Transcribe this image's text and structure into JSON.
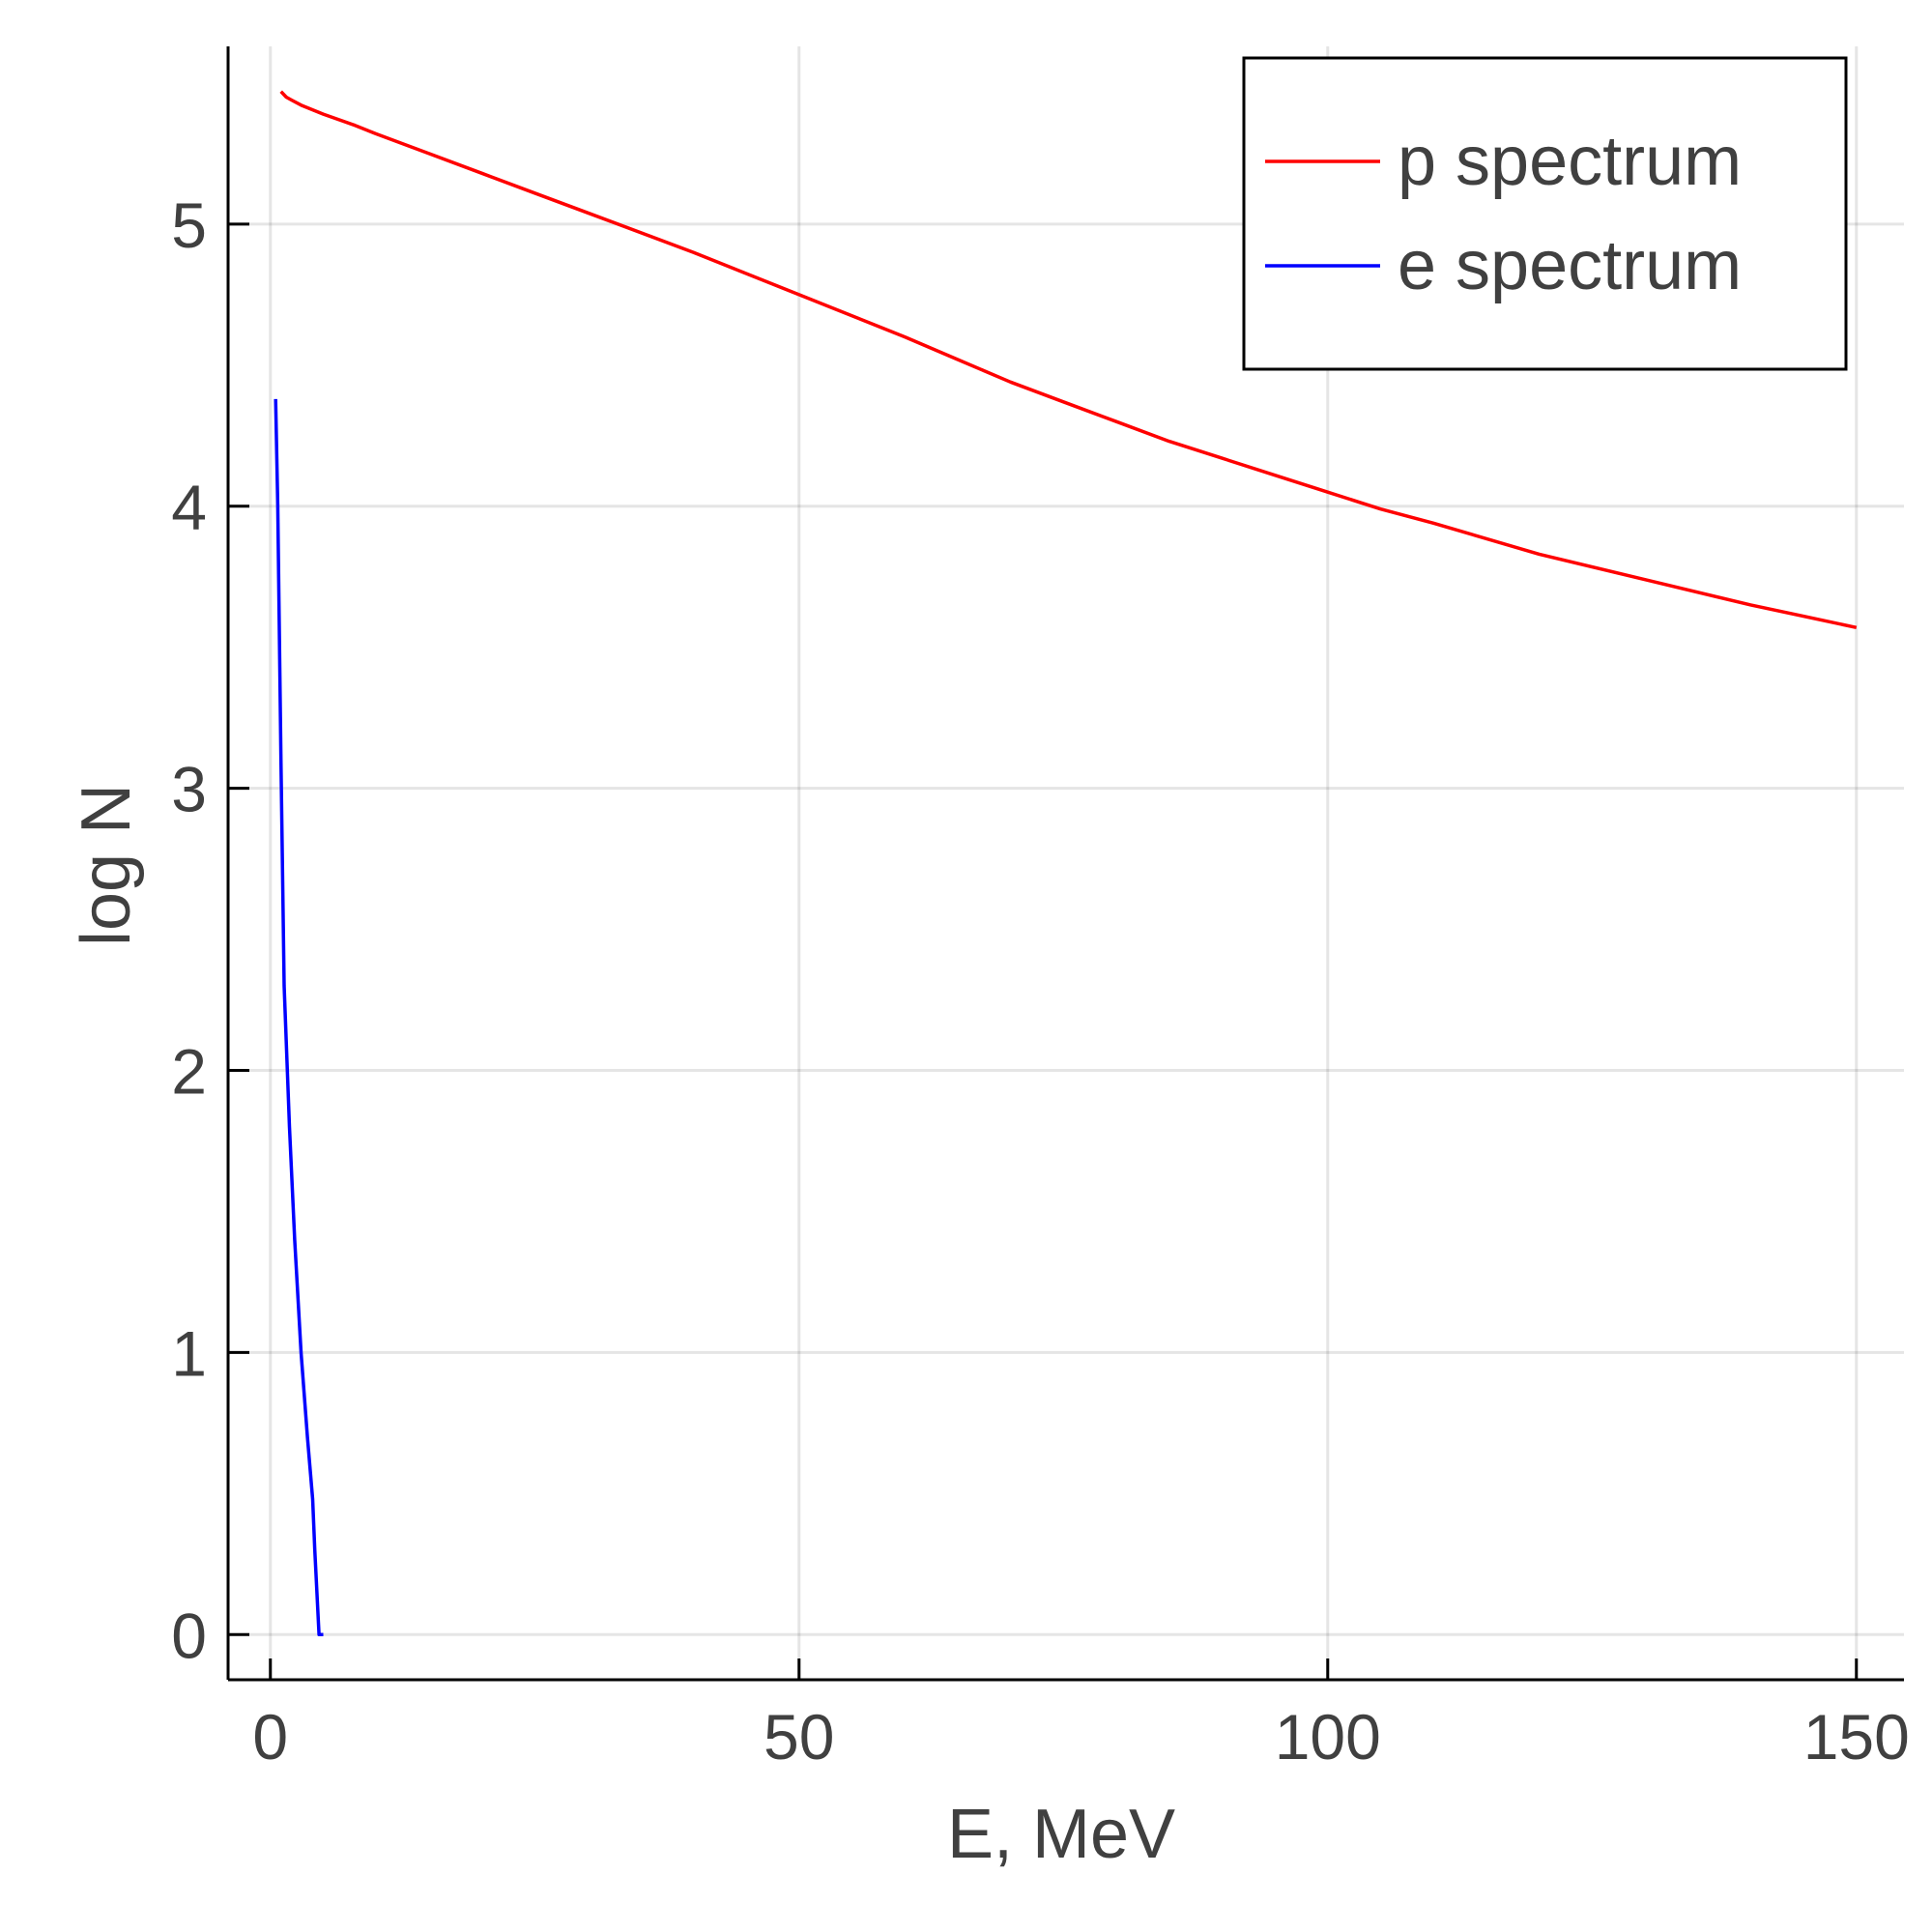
{
  "chart_data": {
    "type": "line",
    "title": "",
    "xlabel": "E, MeV",
    "ylabel": "log N",
    "xlim": [
      -4,
      154.5
    ],
    "ylim": [
      -0.16,
      5.63
    ],
    "xticks": [
      0,
      50,
      100,
      150
    ],
    "yticks": [
      0,
      1,
      2,
      3,
      4,
      5
    ],
    "grid": true,
    "legend_position": "top-right",
    "series": [
      {
        "name": "p spectrum",
        "color": "#ff0000",
        "x": [
          1,
          1.5,
          2,
          3,
          5,
          8,
          10,
          15,
          20,
          25,
          30,
          40,
          50,
          60,
          65,
          70,
          75,
          80,
          85,
          90,
          95,
          100,
          105,
          110,
          120,
          130,
          140,
          150
        ],
        "y": [
          5.47,
          5.45,
          5.44,
          5.42,
          5.39,
          5.35,
          5.32,
          5.25,
          5.18,
          5.11,
          5.04,
          4.9,
          4.75,
          4.6,
          4.52,
          4.44,
          4.37,
          4.3,
          4.23,
          4.17,
          4.11,
          4.05,
          3.99,
          3.94,
          3.83,
          3.74,
          3.65,
          3.57
        ]
      },
      {
        "name": "e spectrum",
        "color": "#0000ff",
        "x": [
          0.5,
          0.7,
          1.0,
          1.3,
          1.8,
          2.3,
          2.9,
          3.5,
          4.0,
          4.2,
          4.6,
          5.0
        ],
        "y": [
          4.38,
          4.0,
          3.1,
          2.3,
          1.8,
          1.4,
          1.0,
          0.7,
          0.48,
          0.3,
          0.0,
          0.0
        ]
      }
    ]
  }
}
